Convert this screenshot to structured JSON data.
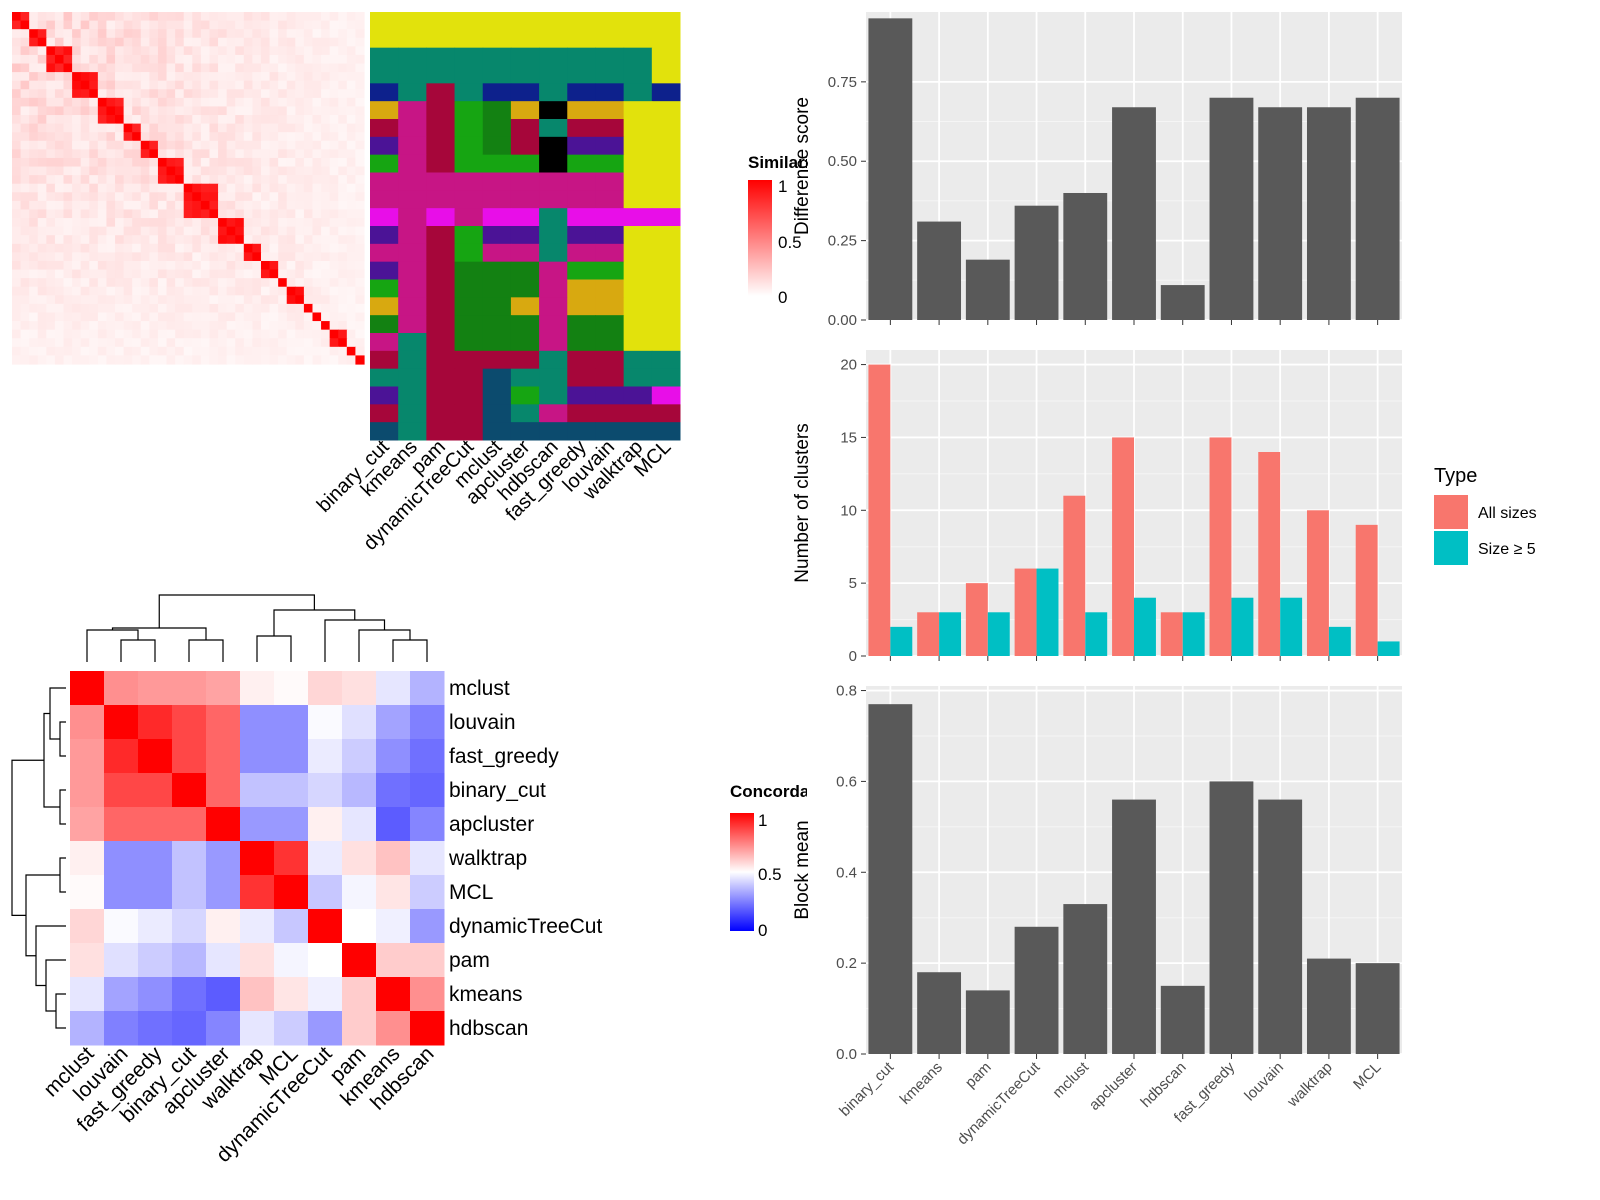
{
  "methods_order": [
    "binary_cut",
    "kmeans",
    "pam",
    "dynamicTreeCut",
    "mclust",
    "apcluster",
    "hdbscan",
    "fast_greedy",
    "louvain",
    "walktrap",
    "MCL"
  ],
  "similarity_panel": {
    "legend_title": "Similarity",
    "legend_ticks": [
      "1",
      "0.5",
      "0"
    ],
    "column_labels": [
      "binary_cut",
      "kmeans",
      "pam",
      "dynamicTreeCut",
      "mclust",
      "apcluster",
      "hdbscan",
      "fast_greedy",
      "louvain",
      "walktrap",
      "MCL"
    ],
    "block_sizes": [
      2,
      2,
      3,
      3,
      3,
      2,
      2,
      3,
      4,
      3,
      2,
      2,
      1,
      2,
      1,
      1,
      1,
      2,
      1,
      1
    ],
    "cluster_palette": [
      "#e2e20c",
      "#07876c",
      "#0d218c",
      "#c71585",
      "#a6063a",
      "#16a512",
      "#138112",
      "#e80ee8",
      "#4b1396",
      "#d8a910",
      "#0c4b6e"
    ],
    "assignment_grid": [
      [
        "Y",
        "Y",
        "Y",
        "Y",
        "Y",
        "Y",
        "Y",
        "Y",
        "Y",
        "Y",
        "Y"
      ],
      [
        "Y",
        "Y",
        "Y",
        "Y",
        "Y",
        "Y",
        "Y",
        "Y",
        "Y",
        "Y",
        "Y"
      ],
      [
        "T",
        "T",
        "T",
        "T",
        "T",
        "T",
        "T",
        "T",
        "T",
        "T",
        "Y"
      ],
      [
        "T",
        "T",
        "T",
        "T",
        "T",
        "T",
        "T",
        "T",
        "T",
        "T",
        "Y"
      ],
      [
        "N",
        "T",
        "C",
        "T",
        "N",
        "N",
        "T",
        "N",
        "N",
        "T",
        "N"
      ],
      [
        "O",
        "M",
        "C",
        "G",
        "D",
        "O",
        "P",
        "O",
        "O",
        "Y",
        "Y"
      ],
      [
        "C",
        "M",
        "C",
        "G",
        "D",
        "C",
        "T",
        "C",
        "C",
        "Y",
        "Y"
      ],
      [
        "V",
        "M",
        "C",
        "G",
        "D",
        "C",
        "P",
        "V",
        "V",
        "Y",
        "Y"
      ],
      [
        "G",
        "M",
        "C",
        "G",
        "G",
        "G",
        "P",
        "G",
        "G",
        "Y",
        "Y"
      ],
      [
        "M",
        "M",
        "M",
        "M",
        "M",
        "M",
        "M",
        "M",
        "M",
        "Y",
        "Y"
      ],
      [
        "M",
        "M",
        "M",
        "M",
        "M",
        "M",
        "M",
        "M",
        "M",
        "Y",
        "Y"
      ],
      [
        "E",
        "M",
        "E",
        "M",
        "E",
        "E",
        "T",
        "E",
        "E",
        "E",
        "E"
      ],
      [
        "V",
        "M",
        "C",
        "G",
        "V",
        "V",
        "T",
        "V",
        "V",
        "Y",
        "Y"
      ],
      [
        "M",
        "M",
        "C",
        "G",
        "M",
        "M",
        "T",
        "M",
        "M",
        "Y",
        "Y"
      ],
      [
        "V",
        "M",
        "C",
        "D",
        "D",
        "D",
        "M",
        "G",
        "G",
        "Y",
        "Y"
      ],
      [
        "G",
        "M",
        "C",
        "D",
        "D",
        "D",
        "M",
        "O",
        "O",
        "Y",
        "Y"
      ],
      [
        "O",
        "M",
        "C",
        "D",
        "D",
        "O",
        "M",
        "O",
        "O",
        "Y",
        "Y"
      ],
      [
        "D",
        "M",
        "C",
        "D",
        "D",
        "D",
        "M",
        "D",
        "D",
        "Y",
        "Y"
      ],
      [
        "M",
        "T",
        "C",
        "D",
        "D",
        "D",
        "M",
        "D",
        "D",
        "Y",
        "Y"
      ],
      [
        "C",
        "T",
        "C",
        "C",
        "C",
        "C",
        "T",
        "C",
        "C",
        "T",
        "T"
      ],
      [
        "T",
        "T",
        "C",
        "C",
        "B",
        "T",
        "T",
        "C",
        "C",
        "T",
        "T"
      ],
      [
        "V",
        "T",
        "C",
        "C",
        "B",
        "G",
        "T",
        "V",
        "V",
        "V",
        "E"
      ],
      [
        "C",
        "T",
        "C",
        "C",
        "B",
        "T",
        "M",
        "C",
        "C",
        "C",
        "C"
      ],
      [
        "B",
        "T",
        "C",
        "C",
        "B",
        "B",
        "B",
        "B",
        "B",
        "B",
        "B"
      ]
    ],
    "assignment_key": {
      "Y": 0,
      "T": 1,
      "N": 2,
      "M": 3,
      "C": 4,
      "G": 5,
      "D": 6,
      "E": 7,
      "V": 8,
      "O": 9,
      "B": 10
    }
  },
  "concordance_panel": {
    "legend_title": "Concordance",
    "legend_ticks": [
      "1",
      "0.5",
      "0"
    ],
    "labels": [
      "mclust",
      "louvain",
      "fast_greedy",
      "binary_cut",
      "apcluster",
      "walktrap",
      "MCL",
      "dynamicTreeCut",
      "pam",
      "kmeans",
      "hdbscan"
    ],
    "matrix": [
      [
        1.0,
        0.72,
        0.7,
        0.7,
        0.68,
        0.53,
        0.51,
        0.58,
        0.56,
        0.45,
        0.35
      ],
      [
        0.72,
        1.0,
        0.92,
        0.86,
        0.8,
        0.28,
        0.28,
        0.49,
        0.44,
        0.32,
        0.25
      ],
      [
        0.7,
        0.92,
        1.0,
        0.86,
        0.8,
        0.28,
        0.28,
        0.46,
        0.4,
        0.28,
        0.22
      ],
      [
        0.7,
        0.86,
        0.86,
        1.0,
        0.8,
        0.38,
        0.38,
        0.42,
        0.36,
        0.22,
        0.2
      ],
      [
        0.68,
        0.8,
        0.8,
        0.8,
        1.0,
        0.3,
        0.3,
        0.53,
        0.45,
        0.18,
        0.26
      ],
      [
        0.53,
        0.28,
        0.28,
        0.38,
        0.3,
        1.0,
        0.9,
        0.46,
        0.56,
        0.62,
        0.45
      ],
      [
        0.51,
        0.28,
        0.28,
        0.38,
        0.3,
        0.9,
        1.0,
        0.39,
        0.48,
        0.55,
        0.4
      ],
      [
        0.58,
        0.49,
        0.46,
        0.42,
        0.53,
        0.46,
        0.39,
        1.0,
        0.5,
        0.47,
        0.3
      ],
      [
        0.56,
        0.44,
        0.4,
        0.36,
        0.45,
        0.56,
        0.48,
        0.5,
        1.0,
        0.6,
        0.6
      ],
      [
        0.45,
        0.32,
        0.28,
        0.22,
        0.18,
        0.62,
        0.55,
        0.47,
        0.6,
        1.0,
        0.72
      ],
      [
        0.35,
        0.25,
        0.22,
        0.2,
        0.26,
        0.45,
        0.4,
        0.3,
        0.6,
        0.72,
        1.0
      ]
    ]
  },
  "chart_data": [
    {
      "type": "bar",
      "categories": [
        "binary_cut",
        "kmeans",
        "pam",
        "dynamicTreeCut",
        "mclust",
        "apcluster",
        "hdbscan",
        "fast_greedy",
        "louvain",
        "walktrap",
        "MCL"
      ],
      "values": [
        0.95,
        0.31,
        0.19,
        0.36,
        0.4,
        0.67,
        0.11,
        0.7,
        0.67,
        0.67,
        0.7
      ],
      "ylabel": "Difference score",
      "ylim": [
        0,
        0.97
      ],
      "yticks": [
        0.0,
        0.25,
        0.5,
        0.75
      ],
      "yticklabels": [
        "0.00",
        "0.25",
        "0.50",
        "0.75"
      ],
      "bar_color": "#595959",
      "grid": true
    },
    {
      "type": "bar",
      "categories": [
        "binary_cut",
        "kmeans",
        "pam",
        "dynamicTreeCut",
        "mclust",
        "apcluster",
        "hdbscan",
        "fast_greedy",
        "louvain",
        "walktrap",
        "MCL"
      ],
      "series": [
        {
          "name": "All sizes",
          "values": [
            20,
            3,
            5,
            6,
            11,
            15,
            3,
            15,
            14,
            10,
            9
          ],
          "color": "#f8766d"
        },
        {
          "name": "Size ≥ 5",
          "values": [
            2,
            3,
            3,
            6,
            3,
            4,
            3,
            4,
            4,
            2,
            1
          ],
          "color": "#00bfc4"
        }
      ],
      "ylabel": "Number of clusters",
      "ylim": [
        0,
        21
      ],
      "yticks": [
        0,
        5,
        10,
        15,
        20
      ],
      "yticklabels": [
        "0",
        "5",
        "10",
        "15",
        "20"
      ],
      "legend_title": "Type",
      "legend_position": "right",
      "grid": true
    },
    {
      "type": "bar",
      "categories": [
        "binary_cut",
        "kmeans",
        "pam",
        "dynamicTreeCut",
        "mclust",
        "apcluster",
        "hdbscan",
        "fast_greedy",
        "louvain",
        "walktrap",
        "MCL"
      ],
      "values": [
        0.77,
        0.18,
        0.14,
        0.28,
        0.33,
        0.56,
        0.15,
        0.6,
        0.56,
        0.21,
        0.2
      ],
      "ylabel": "Block mean",
      "ylim": [
        0,
        0.81
      ],
      "yticks": [
        0.0,
        0.2,
        0.4,
        0.6,
        0.8
      ],
      "yticklabels": [
        "0.0",
        "0.2",
        "0.4",
        "0.6",
        "0.8"
      ],
      "bar_color": "#595959",
      "grid": true
    }
  ]
}
